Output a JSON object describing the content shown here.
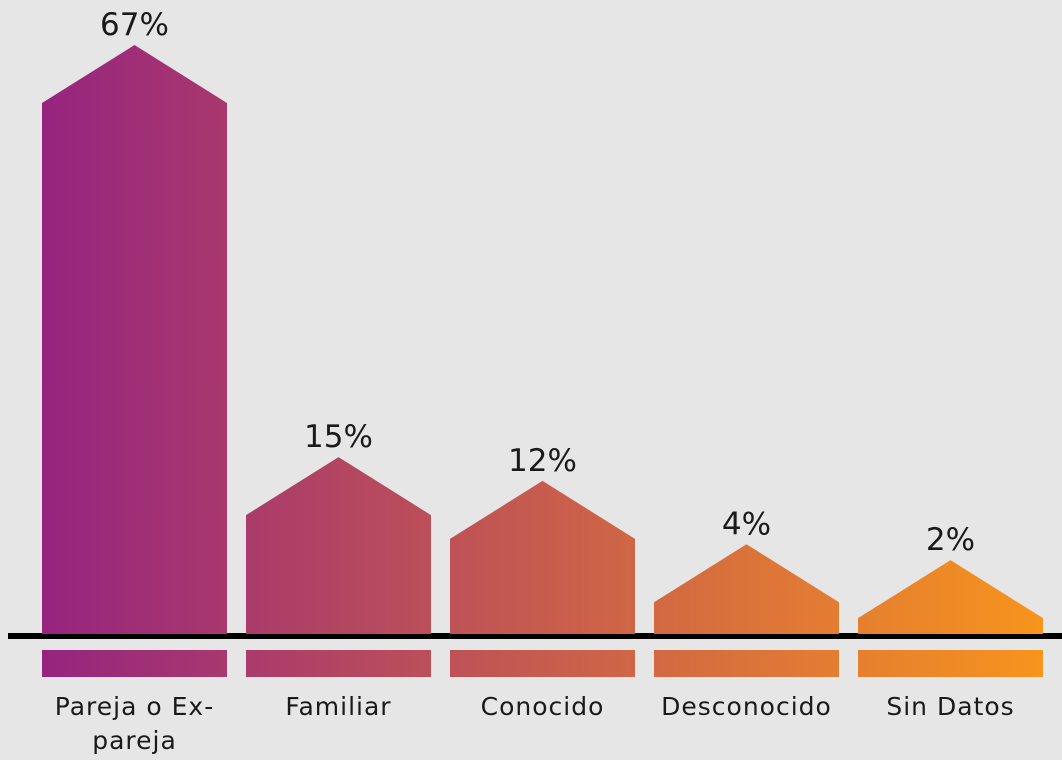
{
  "chart_data": {
    "type": "house-bar",
    "categories": [
      "Pareja o Ex-pareja",
      "Familiar",
      "Conocido",
      "Desconocido",
      "Sin Datos"
    ],
    "values": [
      67,
      15,
      12,
      4,
      2
    ],
    "value_labels": [
      "67%",
      "15%",
      "12%",
      "4%",
      "2%"
    ],
    "colors": [
      "#96247f",
      "#f7941d"
    ]
  }
}
